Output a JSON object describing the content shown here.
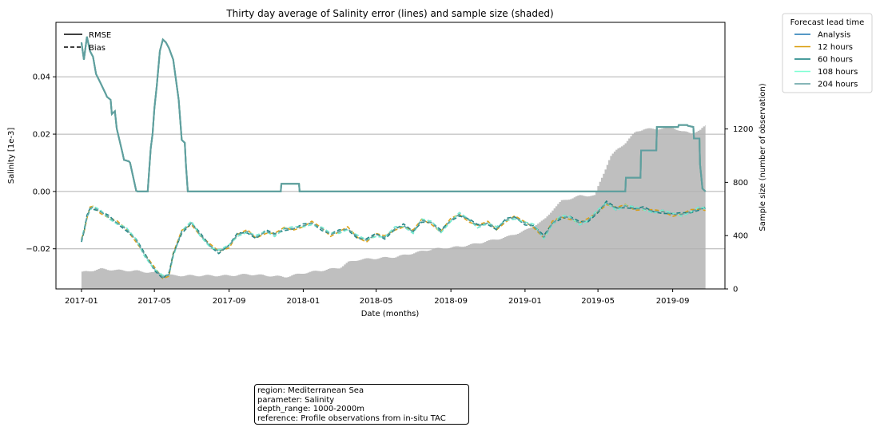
{
  "chart_data": {
    "type": "line",
    "title": "Thirty day average of Salinity error (lines) and sample size (shaded)",
    "xlabel": "Date (months)",
    "ylabel": "Salinity [1e-3]",
    "y2label": "Sample size (number of observation)",
    "xlim": [
      "2016-11-20",
      "2019-11-26"
    ],
    "ylim": [
      -0.034,
      0.059
    ],
    "y2lim": [
      0,
      2000
    ],
    "x_ticks": [
      "2017-01",
      "2017-05",
      "2017-09",
      "2018-01",
      "2018-05",
      "2018-09",
      "2019-01",
      "2019-05",
      "2019-09"
    ],
    "y_ticks": [
      -0.02,
      0.0,
      0.02,
      0.04
    ],
    "y_tick_labels": [
      "−0.02",
      "0.00",
      "0.02",
      "0.04"
    ],
    "y2_ticks": [
      0,
      400,
      800,
      1200
    ],
    "y2_tick_labels": [
      "0",
      "400",
      "800",
      "1200"
    ],
    "grid": "horizontal",
    "style_legend": [
      {
        "label": "RMSE",
        "dash": "solid"
      },
      {
        "label": "Bias",
        "dash": "dashed"
      }
    ],
    "legend_title": "Forecast lead time",
    "legend_position": "outside-top-right",
    "series": [
      {
        "name": "Analysis",
        "color": "#1f77b4"
      },
      {
        "name": "12 hours",
        "color": "#d99a06"
      },
      {
        "name": "60 hours",
        "color": "#0e7c7b"
      },
      {
        "name": "108 hours",
        "color": "#7fffd4"
      },
      {
        "name": "204 hours",
        "color": "#5f9ea0"
      }
    ],
    "rmse": {
      "x": [
        "2017-01-01",
        "2017-01-05",
        "2017-01-10",
        "2017-01-15",
        "2017-01-20",
        "2017-01-25",
        "2017-02-01",
        "2017-02-10",
        "2017-02-12",
        "2017-02-18",
        "2017-02-20",
        "2017-02-25",
        "2017-02-28",
        "2017-03-10",
        "2017-03-12",
        "2017-03-20",
        "2017-03-22",
        "2017-04-01",
        "2017-04-03",
        "2017-04-05",
        "2017-04-10",
        "2017-04-15",
        "2017-04-20",
        "2017-04-25",
        "2017-04-28",
        "2017-05-01",
        "2017-05-05",
        "2017-05-10",
        "2017-05-15",
        "2017-05-20",
        "2017-05-25",
        "2017-06-01",
        "2017-06-10",
        "2017-06-15",
        "2017-06-20",
        "2017-06-22",
        "2017-06-25",
        "2017-07-01",
        "2017-09-01",
        "2017-11-01",
        "2017-11-25",
        "2017-11-26",
        "2017-12-25",
        "2017-12-26",
        "2018-06-01",
        "2018-12-01",
        "2019-04-01",
        "2019-04-28",
        "2019-05-01",
        "2019-06-15",
        "2019-06-16",
        "2019-07-10",
        "2019-07-11",
        "2019-08-05",
        "2019-08-06",
        "2019-09-10",
        "2019-09-11",
        "2019-09-25",
        "2019-09-26",
        "2019-10-05",
        "2019-10-06",
        "2019-10-15",
        "2019-10-16",
        "2019-10-20",
        "2019-10-25"
      ],
      "y": [
        0.052,
        0.046,
        0.054,
        0.049,
        0.047,
        0.041,
        0.038,
        0.034,
        0.033,
        0.032,
        0.027,
        0.028,
        0.022,
        0.013,
        0.011,
        0.0105,
        0.01,
        0.0003,
        0.0,
        0.0,
        0.0,
        0.0,
        0.0,
        0.015,
        0.02,
        0.029,
        0.037,
        0.049,
        0.053,
        0.052,
        0.05,
        0.046,
        0.032,
        0.018,
        0.017,
        0.009,
        0.0,
        0.0,
        0.0,
        0.0,
        0.0,
        0.0027,
        0.0027,
        0.0,
        0.0,
        0.0,
        0.0,
        0.0,
        0.0,
        0.0,
        0.0048,
        0.0048,
        0.0143,
        0.0143,
        0.0225,
        0.0225,
        0.0232,
        0.0232,
        0.0229,
        0.0225,
        0.0185,
        0.0185,
        0.0095,
        0.001,
        0.0
      ]
    },
    "bias": {
      "x": [
        "2017-01-01",
        "2017-01-05",
        "2017-01-10",
        "2017-01-15",
        "2017-01-20",
        "2017-02-01",
        "2017-02-15",
        "2017-03-01",
        "2017-03-15",
        "2017-04-01",
        "2017-04-15",
        "2017-05-01",
        "2017-05-15",
        "2017-05-25",
        "2017-06-01",
        "2017-06-15",
        "2017-07-01",
        "2017-07-15",
        "2017-08-01",
        "2017-08-15",
        "2017-09-01",
        "2017-09-15",
        "2017-10-01",
        "2017-10-15",
        "2017-11-01",
        "2017-11-15",
        "2017-12-01",
        "2017-12-15",
        "2018-01-01",
        "2018-01-15",
        "2018-02-01",
        "2018-02-15",
        "2018-03-01",
        "2018-03-15",
        "2018-04-01",
        "2018-04-15",
        "2018-05-01",
        "2018-05-15",
        "2018-06-01",
        "2018-06-15",
        "2018-07-01",
        "2018-07-15",
        "2018-08-01",
        "2018-08-15",
        "2018-09-01",
        "2018-09-15",
        "2018-10-01",
        "2018-10-15",
        "2018-11-01",
        "2018-11-15",
        "2018-12-01",
        "2018-12-15",
        "2019-01-01",
        "2019-01-15",
        "2019-02-01",
        "2019-02-15",
        "2019-03-01",
        "2019-03-15",
        "2019-04-01",
        "2019-04-15",
        "2019-05-01",
        "2019-05-15",
        "2019-06-01",
        "2019-06-15",
        "2019-07-01",
        "2019-07-15",
        "2019-08-01",
        "2019-08-15",
        "2019-09-01",
        "2019-09-15",
        "2019-10-01",
        "2019-10-15",
        "2019-10-25"
      ],
      "y": [
        -0.017,
        -0.014,
        -0.009,
        -0.006,
        -0.0055,
        -0.007,
        -0.009,
        -0.011,
        -0.013,
        -0.017,
        -0.022,
        -0.027,
        -0.03,
        -0.029,
        -0.022,
        -0.014,
        -0.011,
        -0.015,
        -0.019,
        -0.021,
        -0.019,
        -0.015,
        -0.014,
        -0.016,
        -0.014,
        -0.015,
        -0.013,
        -0.013,
        -0.012,
        -0.011,
        -0.013,
        -0.015,
        -0.014,
        -0.013,
        -0.016,
        -0.017,
        -0.015,
        -0.016,
        -0.013,
        -0.012,
        -0.014,
        -0.01,
        -0.011,
        -0.014,
        -0.01,
        -0.008,
        -0.01,
        -0.012,
        -0.011,
        -0.013,
        -0.01,
        -0.009,
        -0.011,
        -0.012,
        -0.016,
        -0.011,
        -0.009,
        -0.009,
        -0.011,
        -0.01,
        -0.007,
        -0.004,
        -0.006,
        -0.005,
        -0.006,
        -0.006,
        -0.007,
        -0.007,
        -0.008,
        -0.008,
        -0.007,
        -0.006,
        -0.006
      ]
    },
    "sample_size": {
      "x": [
        "2017-01-01",
        "2017-02-01",
        "2017-03-01",
        "2017-04-01",
        "2017-05-01",
        "2017-06-01",
        "2017-07-01",
        "2017-09-01",
        "2017-10-01",
        "2017-11-01",
        "2017-12-01",
        "2018-01-01",
        "2018-02-01",
        "2018-03-01",
        "2018-03-15",
        "2018-04-01",
        "2018-05-01",
        "2018-06-01",
        "2018-07-01",
        "2018-08-01",
        "2018-09-01",
        "2018-10-01",
        "2018-11-01",
        "2018-12-01",
        "2019-01-01",
        "2019-02-01",
        "2019-02-15",
        "2019-03-01",
        "2019-04-01",
        "2019-04-25",
        "2019-05-01",
        "2019-05-10",
        "2019-05-20",
        "2019-06-01",
        "2019-06-15",
        "2019-07-01",
        "2019-07-15",
        "2019-08-01",
        "2019-09-01",
        "2019-09-15",
        "2019-10-01",
        "2019-10-15",
        "2019-10-25"
      ],
      "y": [
        125,
        150,
        140,
        135,
        120,
        100,
        100,
        100,
        110,
        100,
        90,
        120,
        140,
        160,
        200,
        220,
        230,
        240,
        270,
        300,
        310,
        330,
        360,
        390,
        440,
        520,
        600,
        660,
        700,
        700,
        780,
        880,
        990,
        1050,
        1100,
        1180,
        1200,
        1200,
        1210,
        1180,
        1170,
        1190,
        1230
      ]
    }
  },
  "info_box": {
    "region": "region: Mediterranean Sea",
    "parameter": "parameter: Salinity",
    "depth_range": "depth_range: 1000-2000m",
    "reference": "reference: Profile observations from in-situ TAC"
  },
  "colors": {
    "shade": "#bfbfbf",
    "grid": "#b0b0b0",
    "bias_line": "#5f9ea0"
  }
}
